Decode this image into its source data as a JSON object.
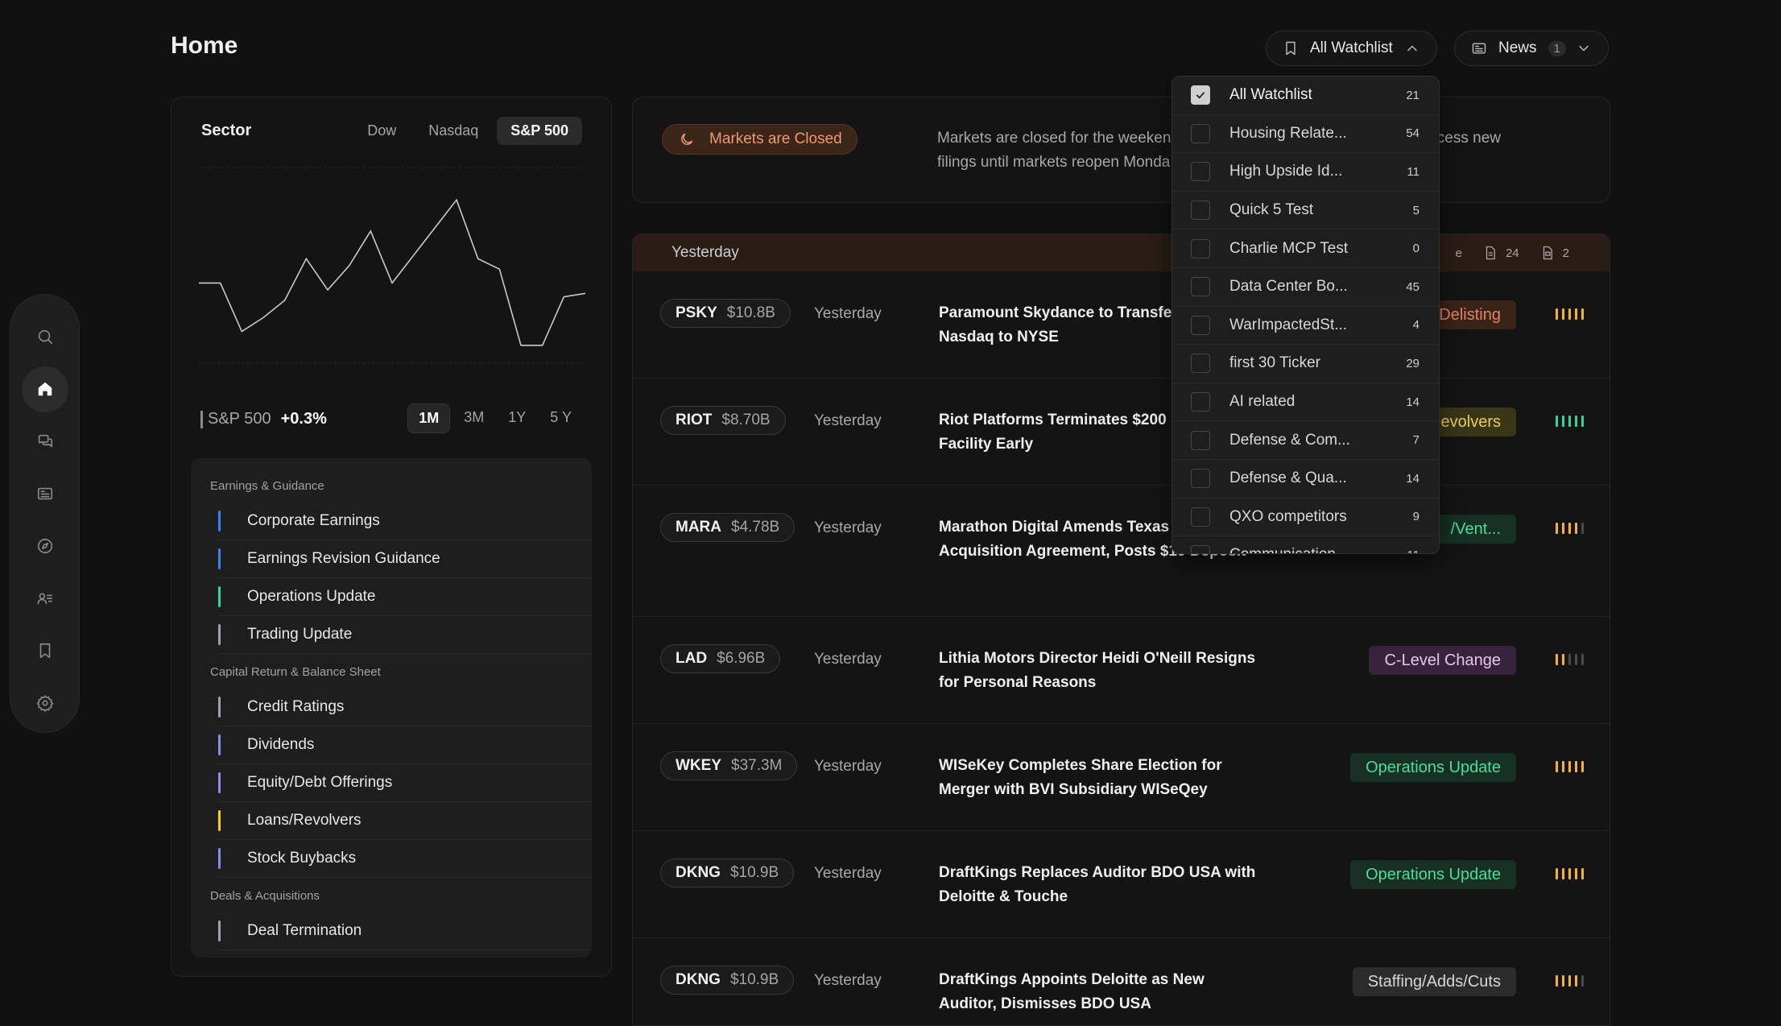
{
  "header": {
    "title": "Home",
    "watchlist_label": "All Watchlist",
    "news_label": "News",
    "news_badge": "1"
  },
  "sector": {
    "title": "Sector",
    "index_tabs": [
      "Dow",
      "Nasdaq",
      "S&P 500"
    ],
    "active_index": "S&P 500",
    "index_name": "S&P 500",
    "index_change": "+0.3%",
    "range_tabs": [
      "1M",
      "3M",
      "1Y",
      "5 Y"
    ],
    "active_range": "1M",
    "chart_data": {
      "type": "line",
      "values": [
        62,
        62,
        48,
        52,
        57,
        69,
        60,
        67,
        77,
        62,
        70,
        78,
        86,
        69,
        66,
        44,
        44,
        58,
        59
      ],
      "grid": false
    },
    "groups": [
      {
        "title": "Earnings & Guidance",
        "items": [
          {
            "label": "Corporate Earnings",
            "color": "#3b82f6"
          },
          {
            "label": "Earnings Revision Guidance",
            "color": "#3b82f6"
          },
          {
            "label": "Operations Update",
            "color": "#34d399"
          },
          {
            "label": "Trading Update",
            "color": "#9ca3af"
          }
        ]
      },
      {
        "title": "Capital Return & Balance Sheet",
        "items": [
          {
            "label": "Credit Ratings",
            "color": "#9ca3af"
          },
          {
            "label": "Dividends",
            "color": "#818cf8"
          },
          {
            "label": "Equity/Debt Offerings",
            "color": "#8b8bf0"
          },
          {
            "label": "Loans/Revolvers",
            "color": "#facc15"
          },
          {
            "label": "Stock Buybacks",
            "color": "#818cf8"
          }
        ]
      },
      {
        "title": "Deals & Acquisitions",
        "items": [
          {
            "label": "Deal Termination",
            "color": "#9ca3af"
          }
        ]
      }
    ]
  },
  "banner": {
    "status": "Markets are Closed",
    "line1_left": "Markets are closed for the weeken",
    "line1_right": "rocess new",
    "line2": "filings until markets reopen Monda"
  },
  "feed": {
    "section": "Yesterday",
    "stat_partial": "e",
    "docs_count": "24",
    "ppt_count": "2",
    "rows": [
      {
        "symbol": "PSKY",
        "cap": "$10.8B",
        "when": "Yesterday",
        "headline": "Paramount Skydance to Transfer from Nasdaq to NYSE",
        "tag": "Delisting",
        "tag_color": "#e5855e",
        "tag_bg": "#3a2319",
        "strength_color": "#f5b13d",
        "strength_on": 5
      },
      {
        "symbol": "RIOT",
        "cap": "$8.70B",
        "when": "Yesterday",
        "headline": "Riot Platforms Terminates $200 M Credit Facility Early",
        "tag": "evolvers",
        "tag_color": "#e8d05a",
        "tag_bg": "#3a3517",
        "strength_color": "#34d399",
        "strength_on": 5
      },
      {
        "symbol": "MARA",
        "cap": "$4.78B",
        "when": "Yesterday",
        "headline": "Marathon Digital Amends Texas L Acquisition Agreement, Posts $10 Deposit",
        "tag": "/Vent...",
        "tag_color": "#4ade9a",
        "tag_bg": "#163024",
        "strength_color": "#f5b13d",
        "strength_on": 4
      },
      {
        "symbol": "LAD",
        "cap": "$6.96B",
        "when": "Yesterday",
        "headline": "Lithia Motors Director Heidi O'Neill Resigns for Personal Reasons",
        "tag": "C-Level Change",
        "tag_color": "#e7c4ee",
        "tag_bg": "#37243c",
        "strength_color": "#f5b13d",
        "strength_on": 2
      },
      {
        "symbol": "WKEY",
        "cap": "$37.3M",
        "when": "Yesterday",
        "headline": "WISeKey Completes Share Election for Merger with BVI Subsidiary WISeQey",
        "tag": "Operations Update",
        "tag_color": "#4ade9a",
        "tag_bg": "#163024",
        "strength_color": "#f5b13d",
        "strength_on": 5
      },
      {
        "symbol": "DKNG",
        "cap": "$10.9B",
        "when": "Yesterday",
        "headline": "DraftKings Replaces Auditor BDO USA with Deloitte & Touche",
        "tag": "Operations Update",
        "tag_color": "#4ade9a",
        "tag_bg": "#163024",
        "strength_color": "#f5b13d",
        "strength_on": 5
      },
      {
        "symbol": "DKNG",
        "cap": "$10.9B",
        "when": "Yesterday",
        "headline": "DraftKings Appoints Deloitte as New Auditor, Dismisses BDO USA",
        "tag": "Staffing/Adds/Cuts",
        "tag_color": "#d6d6d6",
        "tag_bg": "#2c2c2c",
        "strength_color": "#f5b13d",
        "strength_on": 4
      }
    ]
  },
  "watchlist_dropdown": [
    {
      "name": "All Watchlist",
      "count": "21",
      "checked": true
    },
    {
      "name": "Housing Relate...",
      "count": "54",
      "checked": false
    },
    {
      "name": "High Upside Id...",
      "count": "11",
      "checked": false
    },
    {
      "name": "Quick 5 Test",
      "count": "5",
      "checked": false
    },
    {
      "name": "Charlie MCP Test",
      "count": "0",
      "checked": false
    },
    {
      "name": "Data Center Bo...",
      "count": "45",
      "checked": false
    },
    {
      "name": "WarImpactedSt...",
      "count": "4",
      "checked": false
    },
    {
      "name": "first 30 Ticker",
      "count": "29",
      "checked": false
    },
    {
      "name": "AI related",
      "count": "14",
      "checked": false
    },
    {
      "name": "Defense & Com...",
      "count": "7",
      "checked": false
    },
    {
      "name": "Defense & Qua...",
      "count": "14",
      "checked": false
    },
    {
      "name": "QXO competitors",
      "count": "9",
      "checked": false
    },
    {
      "name": "Communication...",
      "count": "11",
      "checked": false
    }
  ],
  "icons": [
    "search-icon",
    "home-icon",
    "chat-icon",
    "news-icon",
    "compass-icon",
    "users-list-icon",
    "bookmark-icon",
    "gear-icon"
  ]
}
